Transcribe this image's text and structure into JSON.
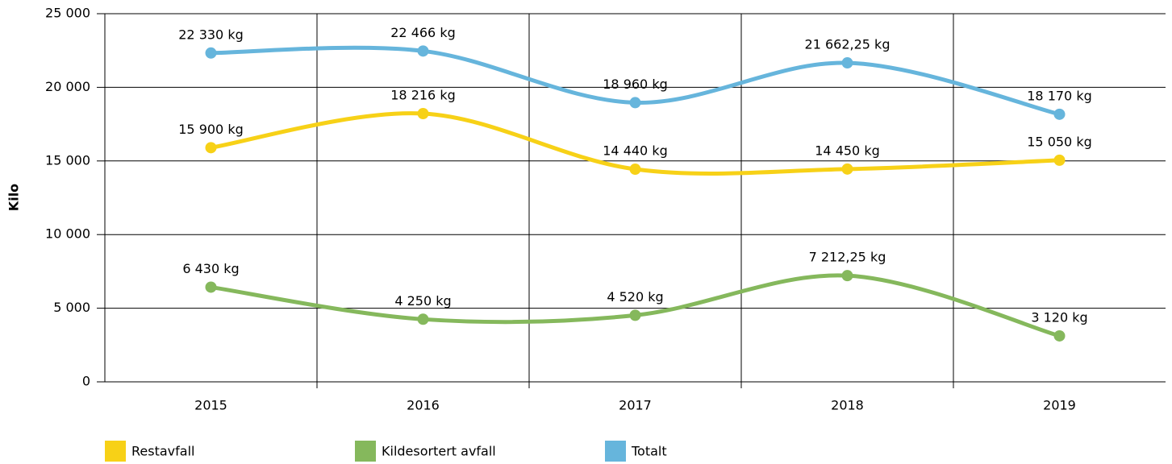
{
  "chart_data": {
    "type": "line",
    "y_label": "Kilo",
    "categories": [
      "2015",
      "2016",
      "2017",
      "2018",
      "2019"
    ],
    "series": [
      {
        "name": "Restavfall",
        "color": "#f7d117",
        "values": [
          15900,
          18216,
          14440,
          14450,
          15050
        ],
        "value_labels": [
          "15 900 kg",
          "18 216 kg",
          "14 440 kg",
          "14 450 kg",
          "15 050 kg"
        ]
      },
      {
        "name": "Kildesortert avfall",
        "color": "#85b85c",
        "values": [
          6430,
          4250,
          4520,
          7212.25,
          3120
        ],
        "value_labels": [
          "6 430 kg",
          "4 250 kg",
          "4 520 kg",
          "7 212,25 kg",
          "3 120 kg"
        ]
      },
      {
        "name": "Totalt",
        "color": "#66b5dc",
        "values": [
          22330,
          22466,
          18960,
          21662.25,
          18170
        ],
        "value_labels": [
          "22 330 kg",
          "22 466 kg",
          "18 960 kg",
          "21 662,25 kg",
          "18 170 kg"
        ]
      }
    ],
    "ylim": [
      0,
      25000
    ],
    "yticks": [
      0,
      {
        "value": 5000,
        "label": "5 000"
      },
      {
        "value": 10000,
        "label": "10 000"
      },
      {
        "value": 15000,
        "label": "15 000"
      },
      {
        "value": 20000,
        "label": "20 000"
      },
      {
        "value": 25000,
        "label": "25 000"
      }
    ],
    "grid": true,
    "legend": "bottom"
  }
}
